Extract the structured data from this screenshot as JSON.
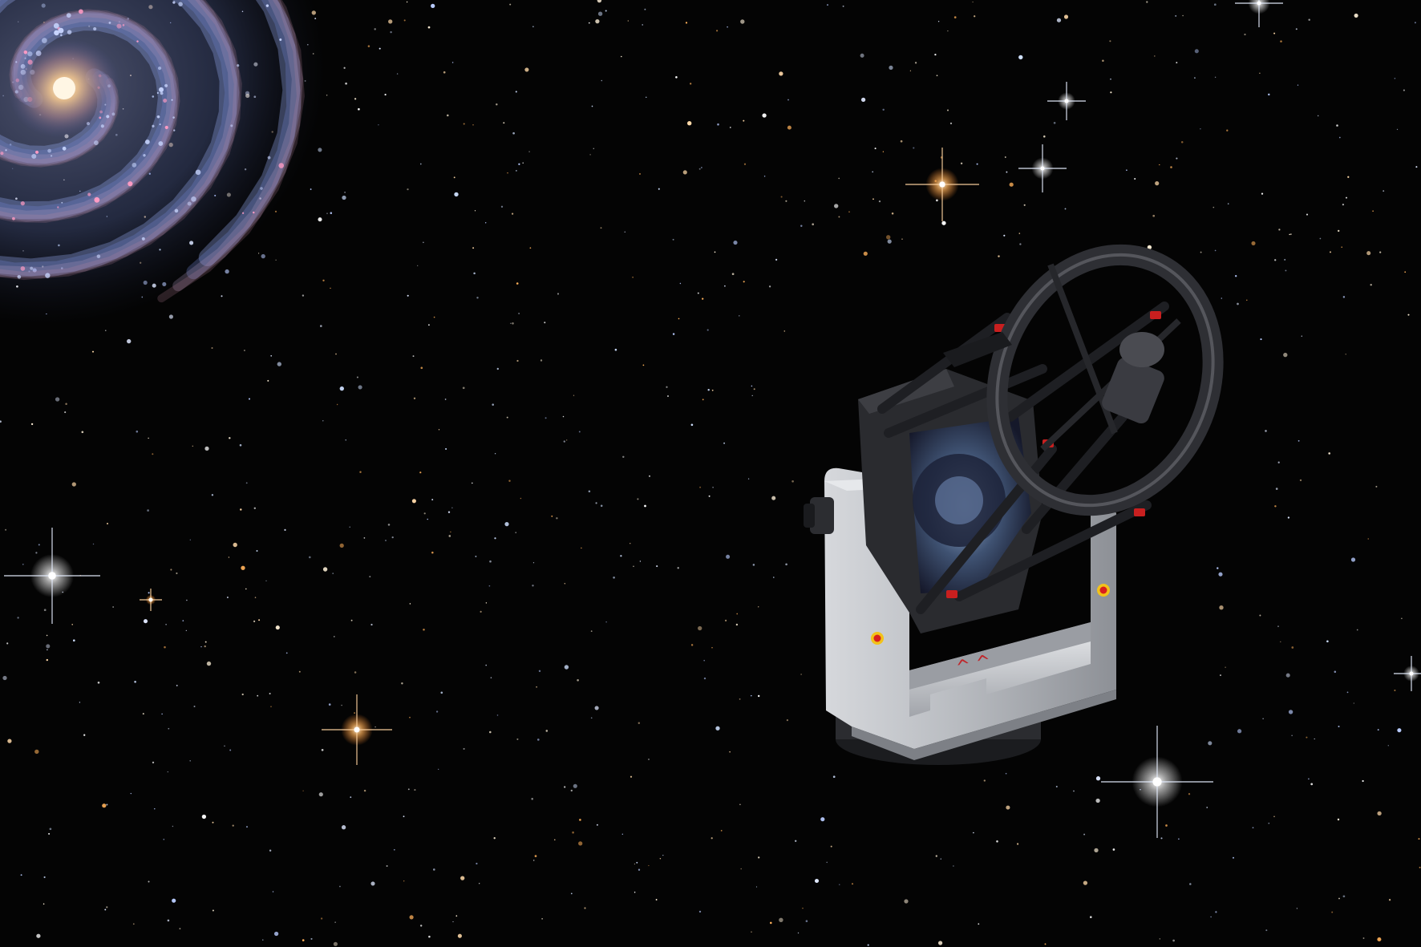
{
  "scene": {
    "subject": "telescope",
    "background": "starfield",
    "feature": "spiral-galaxy"
  },
  "colors": {
    "sky": "#040404",
    "galaxy_core": "#d8b48a",
    "galaxy_arms": "#7f93d6",
    "mount_silver": "#c9cbcf",
    "telescope_dark": "#2a2b2f",
    "safety_red": "#d81e1e",
    "safety_yellow": "#f2c21a",
    "star_blue": "#cfe0ff",
    "star_orange": "#ffb15a"
  },
  "icons": {
    "subject": "telescope-icon",
    "galaxy": "galaxy-icon",
    "star": "star-icon"
  }
}
